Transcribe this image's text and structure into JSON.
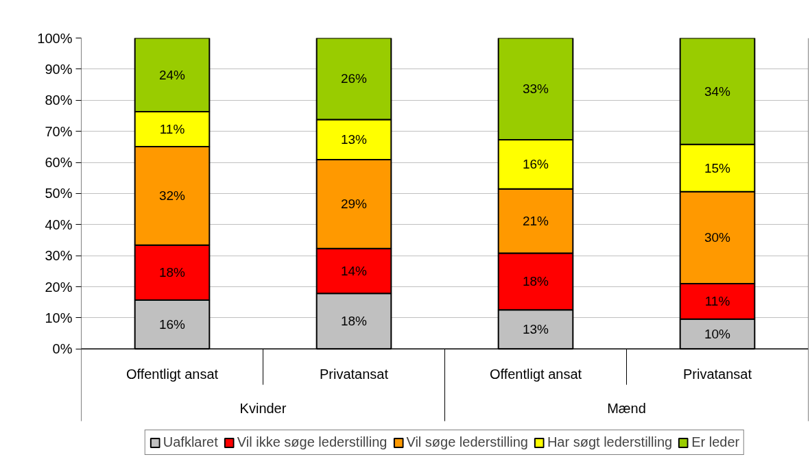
{
  "chart_data": {
    "type": "bar",
    "stacked": true,
    "categories": [
      "Offentligt ansat",
      "Privatansat",
      "Offentligt ansat",
      "Privatansat"
    ],
    "annotations": [
      "Kvinder",
      "Mænd"
    ],
    "series": [
      {
        "name": "Uafklaret",
        "color": "#c0c0c0",
        "values": [
          15.7,
          17.9,
          12.6,
          9.6
        ],
        "value_labels": [
          "16%",
          "18%",
          "13%",
          "10%"
        ]
      },
      {
        "name": "Vil ikke søge lederstilling",
        "color": "#ff0000",
        "values": [
          17.7,
          14.4,
          18.2,
          11.4
        ],
        "value_labels": [
          "18%",
          "14%",
          "18%",
          "11%"
        ]
      },
      {
        "name": "Vil søge lederstilling",
        "color": "#ff9900",
        "values": [
          31.7,
          28.6,
          20.7,
          29.6
        ],
        "value_labels": [
          "32%",
          "29%",
          "21%",
          "30%"
        ]
      },
      {
        "name": "Har søgt lederstilling",
        "color": "#ffff00",
        "values": [
          11.2,
          12.9,
          15.8,
          15.2
        ],
        "value_labels": [
          "11%",
          "13%",
          "16%",
          "15%"
        ]
      },
      {
        "name": "Er leder",
        "color": "#99cc00",
        "values": [
          23.7,
          26.2,
          32.7,
          34.2
        ],
        "value_labels": [
          "24%",
          "26%",
          "33%",
          "34%"
        ]
      }
    ],
    "ylim": [
      0,
      100
    ],
    "yticks": [
      {
        "value": 0,
        "label": "0%"
      },
      {
        "value": 10,
        "label": "10%"
      },
      {
        "value": 20,
        "label": "20%"
      },
      {
        "value": 30,
        "label": "30%"
      },
      {
        "value": 40,
        "label": "40%"
      },
      {
        "value": 50,
        "label": "50%"
      },
      {
        "value": 60,
        "label": "60%"
      },
      {
        "value": 70,
        "label": "70%"
      },
      {
        "value": 80,
        "label": "80%"
      },
      {
        "value": 90,
        "label": "90%"
      },
      {
        "value": 100,
        "label": "100%"
      }
    ],
    "grid": "y",
    "legend": "bottom"
  }
}
